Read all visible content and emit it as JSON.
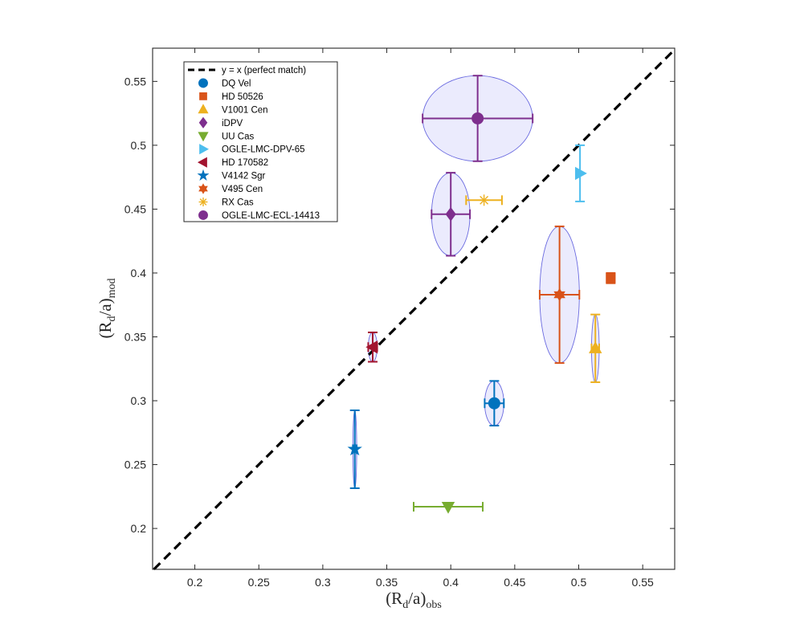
{
  "chart_data": {
    "type": "scatter",
    "title": "",
    "xlabel_main": "(R",
    "xlabel_sub": "d",
    "xlabel_mid": "/a)",
    "xlabel_tail": "obs",
    "ylabel_main": "(R",
    "ylabel_sub": "d",
    "ylabel_mid": "/a)",
    "ylabel_tail": "mod",
    "xlim": [
      0.167,
      0.575
    ],
    "ylim": [
      0.168,
      0.576
    ],
    "xticks": [
      0.2,
      0.25,
      0.3,
      0.35,
      0.4,
      0.45,
      0.5,
      0.55
    ],
    "yticks": [
      0.2,
      0.25,
      0.3,
      0.35,
      0.4,
      0.45,
      0.5,
      0.55
    ],
    "xtick_labels": [
      "0.2",
      "0.25",
      "0.3",
      "0.35",
      "0.4",
      "0.45",
      "0.5",
      "0.55"
    ],
    "ytick_labels": [
      "0.2",
      "0.25",
      "0.3",
      "0.35",
      "0.4",
      "0.45",
      "0.5",
      "0.55"
    ],
    "legend_position": "top-left",
    "reference_line": {
      "label": "y = x (perfect match)",
      "color": "#000000"
    },
    "series": [
      {
        "name": "DQ Vel",
        "marker": "circle",
        "color": "#0072BD",
        "x": 0.434,
        "y": 0.298,
        "xerr": 0.0075,
        "yerr": 0.0175
      },
      {
        "name": "HD 50526",
        "marker": "square",
        "color": "#D95319",
        "x": 0.525,
        "y": 0.396,
        "xerr": 0.0,
        "yerr": 0.004
      },
      {
        "name": "V1001 Cen",
        "marker": "triangle-up",
        "color": "#EDB120",
        "x": 0.513,
        "y": 0.341,
        "xerr": 0.003,
        "yerr": 0.0265
      },
      {
        "name": "iDPV",
        "marker": "diamond",
        "color": "#7E2F8E",
        "x": 0.4,
        "y": 0.446,
        "xerr": 0.015,
        "yerr": 0.0325
      },
      {
        "name": "UU Cas",
        "marker": "triangle-down",
        "color": "#77AC30",
        "x": 0.398,
        "y": 0.217,
        "xerr": 0.027,
        "yerr": 0.0
      },
      {
        "name": "OGLE-LMC-DPV-65",
        "marker": "triangle-right",
        "color": "#4DBEEE",
        "x": 0.501,
        "y": 0.478,
        "xerr": 0.0,
        "yerr": 0.022
      },
      {
        "name": "HD 170582",
        "marker": "triangle-left",
        "color": "#A2142F",
        "x": 0.339,
        "y": 0.342,
        "xerr": 0.0035,
        "yerr": 0.0115
      },
      {
        "name": "V4142 Sgr",
        "marker": "pentagram",
        "color": "#0072BD",
        "x": 0.325,
        "y": 0.262,
        "xerr": 0.0015,
        "yerr": 0.0305
      },
      {
        "name": "V495 Cen",
        "marker": "hexagram",
        "color": "#D95319",
        "x": 0.485,
        "y": 0.383,
        "xerr": 0.0155,
        "yerr": 0.0535
      },
      {
        "name": "RX Cas",
        "marker": "asterisk",
        "color": "#EDB120",
        "x": 0.426,
        "y": 0.457,
        "xerr": 0.014,
        "yerr": 0.0
      },
      {
        "name": "OGLE-LMC-ECL-14413",
        "marker": "circle",
        "color": "#7E2F8E",
        "x": 0.421,
        "y": 0.521,
        "xerr": 0.043,
        "yerr": 0.0335
      }
    ]
  }
}
